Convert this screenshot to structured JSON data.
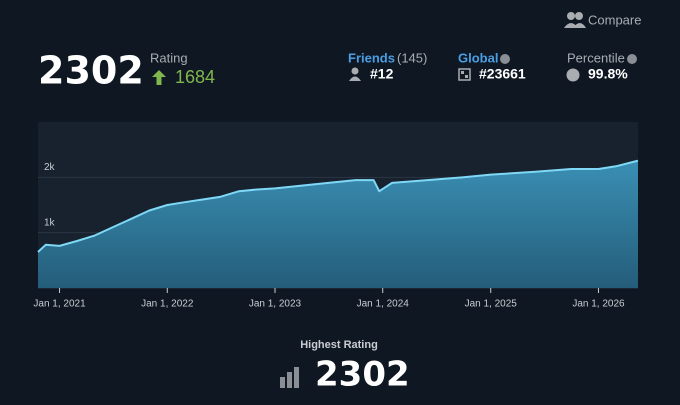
{
  "header": {
    "compare": "Compare",
    "rating": "2302",
    "rating_label": "Rating",
    "rating_change": "1684",
    "friends_label": "Friends",
    "friends_count": "(145)",
    "friends_rank": "#12",
    "global_label": "Global",
    "global_rank": "#23661",
    "percentile_label": "Percentile",
    "percentile": "99.8%"
  },
  "chart_data": {
    "type": "area",
    "x": [
      "2020-10-20",
      "2020-11-15",
      "2021-01-01",
      "2021-03-01",
      "2021-05-01",
      "2021-07-01",
      "2021-09-01",
      "2021-11-01",
      "2022-01-01",
      "2022-03-01",
      "2022-05-01",
      "2022-07-01",
      "2022-09-01",
      "2022-11-01",
      "2023-01-01",
      "2023-04-01",
      "2023-07-01",
      "2023-10-01",
      "2023-12-01",
      "2023-12-20",
      "2024-02-01",
      "2024-06-01",
      "2024-10-01",
      "2025-01-01",
      "2025-06-01",
      "2025-10-01",
      "2026-01-01",
      "2026-03-01",
      "2026-05-15"
    ],
    "series": [
      {
        "color": "#7fd8f6",
        "values": [
          650,
          780,
          760,
          850,
          950,
          1100,
          1250,
          1400,
          1500,
          1550,
          1600,
          1650,
          1750,
          1780,
          1800,
          1850,
          1900,
          1950,
          1950,
          1750,
          1900,
          1950,
          2000,
          2050,
          2100,
          2150,
          2150,
          2200,
          2300
        ]
      }
    ],
    "xlim": [
      "2020-10-20",
      "2026-05-15"
    ],
    "xticks": [
      {
        "value": "2021-01-01",
        "label": "Jan 1, 2021"
      },
      {
        "value": "2022-01-01",
        "label": "Jan 1, 2022"
      },
      {
        "value": "2023-01-01",
        "label": "Jan 1, 2023"
      },
      {
        "value": "2024-01-01",
        "label": "Jan 1, 2024"
      },
      {
        "value": "2025-01-01",
        "label": "Jan 1, 2025"
      },
      {
        "value": "2026-01-01",
        "label": "Jan 1, 2026"
      }
    ],
    "ylim": [
      0,
      3000
    ],
    "yticks": [
      0,
      {
        "value": 1000,
        "label": "1k"
      },
      {
        "value": 2000,
        "label": "2k"
      }
    ],
    "grid": true
  },
  "footer": {
    "label": "Highest Rating",
    "value": "2302"
  }
}
